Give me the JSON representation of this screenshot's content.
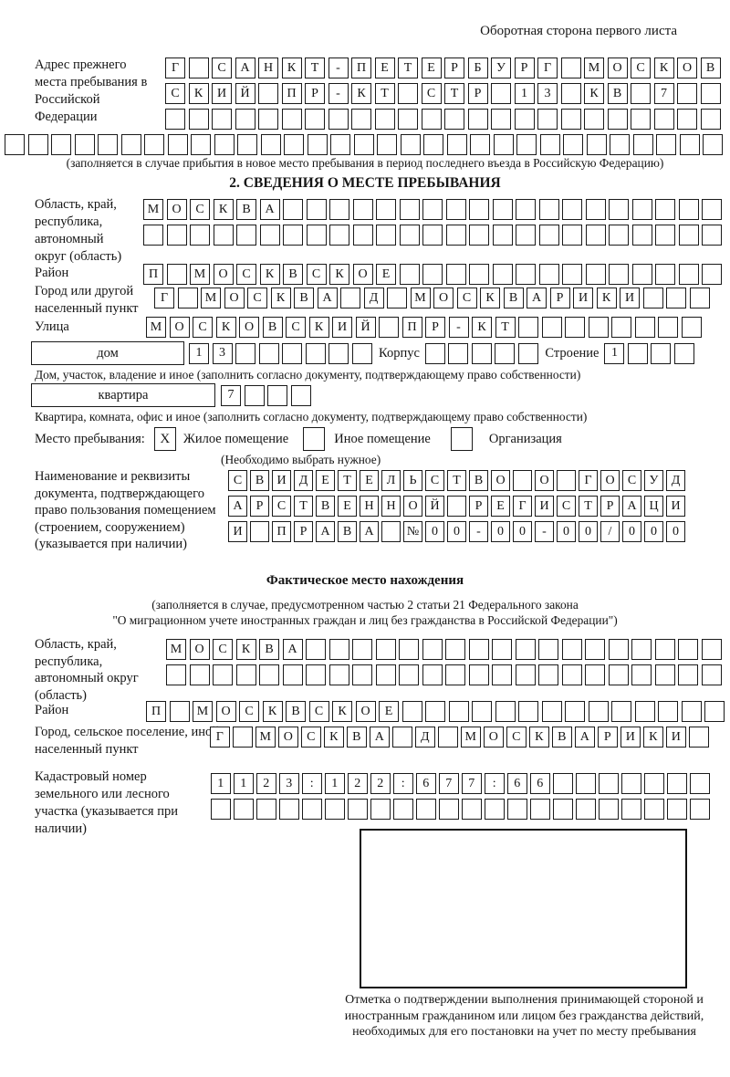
{
  "header": {
    "title": "Оборотная сторона первого листа"
  },
  "prev_address": {
    "label": "Адрес прежнего места пребывания в Российской Федерации",
    "rows": [
      {
        "cells": "Г САНКТ-ПЕТЕРБУРГ МОСКОВ",
        "len": 24
      },
      {
        "cells": "СКИЙ ПР-КТ СТР 13 КВ 7",
        "len": 24
      },
      {
        "cells": "",
        "len": 24
      }
    ],
    "overflow_row": {
      "cells": "",
      "len": 31
    },
    "note": "(заполняется в случае прибытия в новое место пребывания в период последнего въезда в Российскую Федерацию)"
  },
  "section2": {
    "title": "2. СВЕДЕНИЯ О МЕСТЕ ПРЕБЫВАНИЯ",
    "oblast": {
      "label": "Область, край, республика, автономный округ (область)",
      "rows": [
        {
          "cells": "МОСКВА",
          "len": 25
        },
        {
          "cells": "",
          "len": 25
        }
      ]
    },
    "raion": {
      "label": "Район",
      "row": {
        "cells": "П МОСКВСКОЕ",
        "len": 25
      }
    },
    "gorod": {
      "label": "Город или другой населенный пункт",
      "row": {
        "cells": "Г МОСКВА Д МОСКВАРИКИ",
        "len": 24
      }
    },
    "ulitsa": {
      "label": "Улица",
      "row": {
        "cells": "МОСКОВСКИЙ ПР-КТ",
        "len": 24
      }
    },
    "dom": {
      "box_label": "дом",
      "cells": {
        "cells": "13",
        "len": 8
      },
      "korpus_label": "Корпус",
      "korpus_cells": {
        "cells": "",
        "len": 5
      },
      "stroenie_label": "Строение",
      "stroenie_cells": {
        "cells": "1",
        "len": 4
      },
      "note": "Дом, участок, владение и иное (заполнить согласно документу, подтверждающему право собственности)"
    },
    "kvartira": {
      "box_label": "квартира",
      "cells": {
        "cells": "7",
        "len": 4
      },
      "note": "Квартира, комната, офис и иное (заполнить согласно документу, подтверждающему право собственности)"
    },
    "mesto": {
      "label": "Место пребывания:",
      "options": [
        {
          "box": "X",
          "label": "Жилое помещение"
        },
        {
          "box": "",
          "label": "Иное помещение"
        },
        {
          "box": "",
          "label": "Организация"
        }
      ],
      "note": "(Необходимо выбрать нужное)"
    },
    "document": {
      "label": "Наименование и реквизиты документа, подтверждающего право пользования помещением (строением, сооружением) (указывается при наличии)",
      "rows": [
        {
          "cells": "СВИДЕТЕЛЬСТВО О ГОСУД",
          "len": 21
        },
        {
          "cells": "АРСТВЕННОЙ РЕГИСТРАЦИ",
          "len": 21
        },
        {
          "cells": "И ПРАВА №00-00-00/000",
          "len": 21
        }
      ]
    }
  },
  "actual_location": {
    "title": "Фактическое место нахождения",
    "note_line1": "(заполняется в случае, предусмотренном частью 2 статьи 21 Федерального закона",
    "note_line2": "\"О миграционном учете иностранных граждан и лиц без гражданства в Российской Федерации\")",
    "oblast": {
      "label": "Область, край, республика, автономный округ (область)",
      "rows": [
        {
          "cells": "МОСКВА",
          "len": 24
        },
        {
          "cells": "",
          "len": 24
        }
      ]
    },
    "raion": {
      "label": "Район",
      "row": {
        "cells": "П МОСКВСКОЕ",
        "len": 25
      }
    },
    "gorod": {
      "label": "Город, сельское поселение, иной населенный пункт",
      "row": {
        "cells": "Г МОСКВА Д МОСКВАРИКИ",
        "len": 22
      }
    },
    "kadastr": {
      "label": "Кадастровый номер земельного или лесного участка (указывается при наличии)",
      "rows": [
        {
          "cells": "1123:122:677:66",
          "len": 22
        },
        {
          "cells": "",
          "len": 22
        }
      ]
    },
    "stamp_note": "Отметка о подтверждении выполнения принимающей стороной и иностранным гражданином или лицом без гражданства действий, необходимых для его постановки на учет по месту пребывания"
  }
}
